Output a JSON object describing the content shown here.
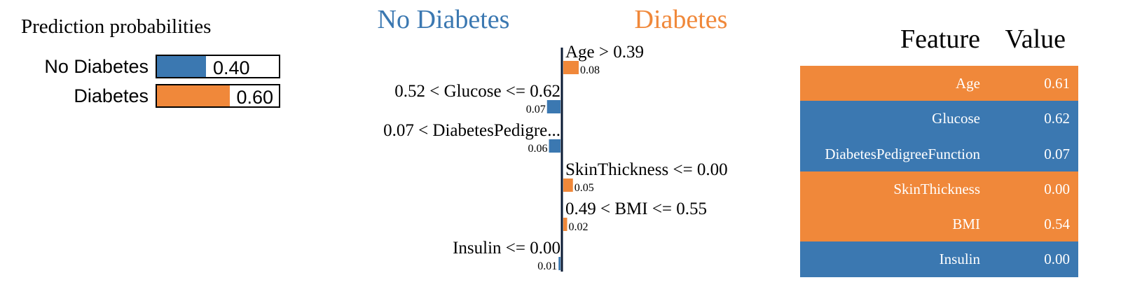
{
  "colors": {
    "no_diabetes": "#3b78b1",
    "diabetes": "#f0883a",
    "axis": "#0a1a33"
  },
  "probabilities": {
    "title": "Prediction probabilities",
    "items": [
      {
        "label": "No Diabetes",
        "value": 0.4,
        "value_text": "0.40",
        "class": "no_diabetes"
      },
      {
        "label": "Diabetes",
        "value": 0.6,
        "value_text": "0.60",
        "class": "diabetes"
      }
    ]
  },
  "chart_data": {
    "type": "bar",
    "orientation": "horizontal",
    "negative_class": "No Diabetes",
    "positive_class": "Diabetes",
    "xlim": [
      -0.08,
      0.08
    ],
    "features": [
      {
        "condition": "Age > 0.39",
        "weight": 0.08,
        "weight_text": "0.08",
        "side": "diabetes"
      },
      {
        "condition": "0.52 < Glucose <= 0.62",
        "weight": -0.07,
        "weight_text": "0.07",
        "side": "no_diabetes"
      },
      {
        "condition": "0.07 < DiabetesPedigre...",
        "weight": -0.06,
        "weight_text": "0.06",
        "side": "no_diabetes"
      },
      {
        "condition": "SkinThickness <= 0.00",
        "weight": 0.05,
        "weight_text": "0.05",
        "side": "diabetes"
      },
      {
        "condition": "0.49 < BMI <= 0.55",
        "weight": 0.02,
        "weight_text": "0.02",
        "side": "diabetes"
      },
      {
        "condition": "Insulin <= 0.00",
        "weight": -0.01,
        "weight_text": "0.01",
        "side": "no_diabetes"
      }
    ]
  },
  "table": {
    "header_feature": "Feature",
    "header_value": "Value",
    "rows": [
      {
        "feature": "Age",
        "value": "0.61",
        "side": "diabetes"
      },
      {
        "feature": "Glucose",
        "value": "0.62",
        "side": "no_diabetes"
      },
      {
        "feature": "DiabetesPedigreeFunction",
        "value": "0.07",
        "side": "no_diabetes"
      },
      {
        "feature": "SkinThickness",
        "value": "0.00",
        "side": "diabetes"
      },
      {
        "feature": "BMI",
        "value": "0.54",
        "side": "diabetes"
      },
      {
        "feature": "Insulin",
        "value": "0.00",
        "side": "no_diabetes"
      }
    ]
  }
}
